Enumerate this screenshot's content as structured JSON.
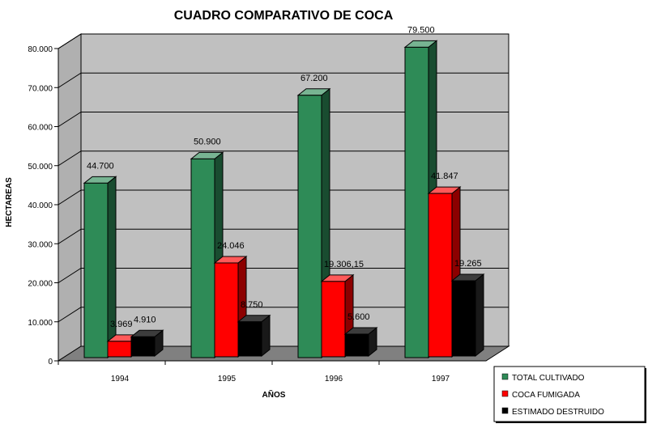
{
  "chart_data": {
    "type": "bar",
    "title": "CUADRO COMPARATIVO DE COCA",
    "xlabel": "AÑOS",
    "ylabel": "HECTAREAS",
    "categories": [
      "1994",
      "1995",
      "1996",
      "1997"
    ],
    "ylim": [
      0,
      80000
    ],
    "yticks": [
      0,
      10000,
      20000,
      30000,
      40000,
      50000,
      60000,
      70000,
      80000
    ],
    "ytick_labels": [
      "0",
      "10.000",
      "20.000",
      "30.000",
      "40.000",
      "50.000",
      "60.000",
      "70.000",
      "80.000"
    ],
    "grid": true,
    "legend_position": "bottom-right",
    "series": [
      {
        "name": "TOTAL CULTIVADO",
        "color": "#2e8b57",
        "values": [
          44700,
          50900,
          67200,
          79500
        ],
        "labels": [
          "44.700",
          "50.900",
          "67.200",
          "79.500"
        ]
      },
      {
        "name": "COCA FUMIGADA",
        "color": "#ff0000",
        "values": [
          3969,
          24046,
          19306.15,
          41847
        ],
        "labels": [
          "3.969",
          "24.046",
          "19.306,15",
          "41.847"
        ]
      },
      {
        "name": "ESTIMADO DESTRUIDO",
        "color": "#000000",
        "values": [
          4910,
          8750,
          5600,
          19265
        ],
        "labels": [
          "4.910",
          "8.750",
          "5.600",
          "19.265"
        ]
      }
    ]
  }
}
